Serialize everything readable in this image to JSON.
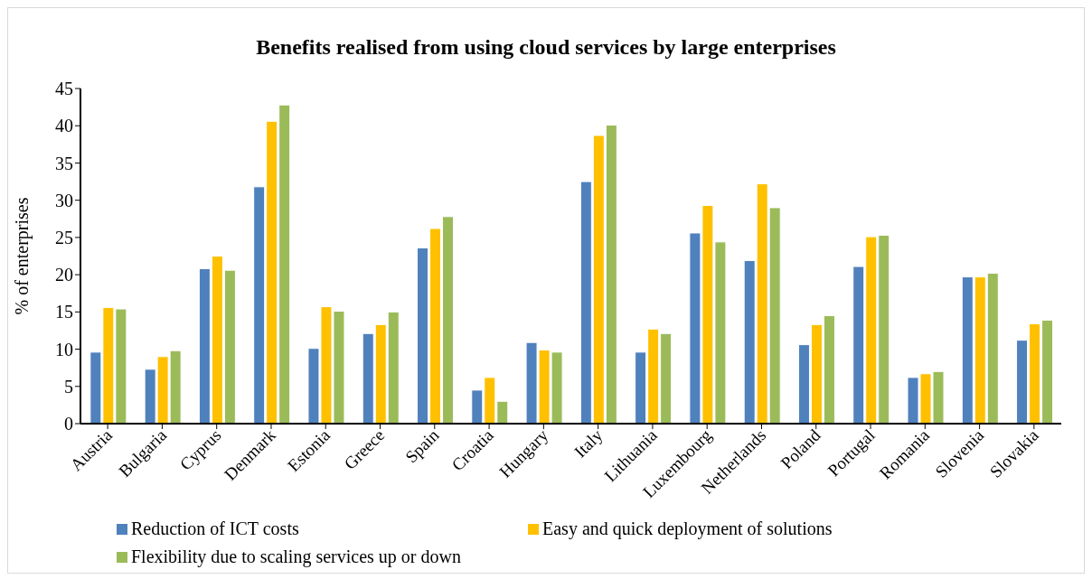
{
  "chart_data": {
    "type": "bar",
    "title": "Benefits realised from using cloud services by large enterprises",
    "ylabel": "% of enterprises",
    "categories": [
      "Austria",
      "Bulgaria",
      "Cyprus",
      "Denmark",
      "Estonia",
      "Greece",
      "Spain",
      "Croatia",
      "Hungary",
      "Italy",
      "Lithuania",
      "Luxembourg",
      "Netherlands",
      "Poland",
      "Portugal",
      "Romania",
      "Slovenia",
      "Slovakia"
    ],
    "series": [
      {
        "name": "Reduction of ICT costs",
        "color": "#4f81bd",
        "values": [
          9.6,
          7.3,
          20.8,
          31.8,
          10.1,
          12.1,
          23.6,
          4.5,
          10.9,
          32.5,
          9.6,
          25.6,
          21.9,
          10.6,
          21.1,
          6.2,
          19.7,
          11.2
        ]
      },
      {
        "name": "Easy and quick deployment of solutions",
        "color": "#ffc000",
        "values": [
          15.6,
          9.0,
          22.5,
          40.6,
          15.7,
          13.3,
          26.2,
          6.2,
          9.9,
          38.7,
          12.7,
          29.3,
          32.2,
          13.3,
          25.1,
          6.7,
          19.7,
          13.4
        ]
      },
      {
        "name": "Flexibility due to scaling services up or down",
        "color": "#9bbb59",
        "values": [
          15.4,
          9.8,
          20.6,
          42.8,
          15.1,
          15.0,
          27.8,
          3.0,
          9.6,
          40.1,
          12.1,
          24.4,
          29.0,
          14.5,
          25.3,
          7.0,
          20.2,
          13.9
        ]
      }
    ],
    "ylim": [
      0,
      45
    ],
    "yticks": [
      0,
      5,
      10,
      15,
      20,
      25,
      30,
      35,
      40,
      45
    ],
    "grid": false,
    "legend": "bottom"
  }
}
